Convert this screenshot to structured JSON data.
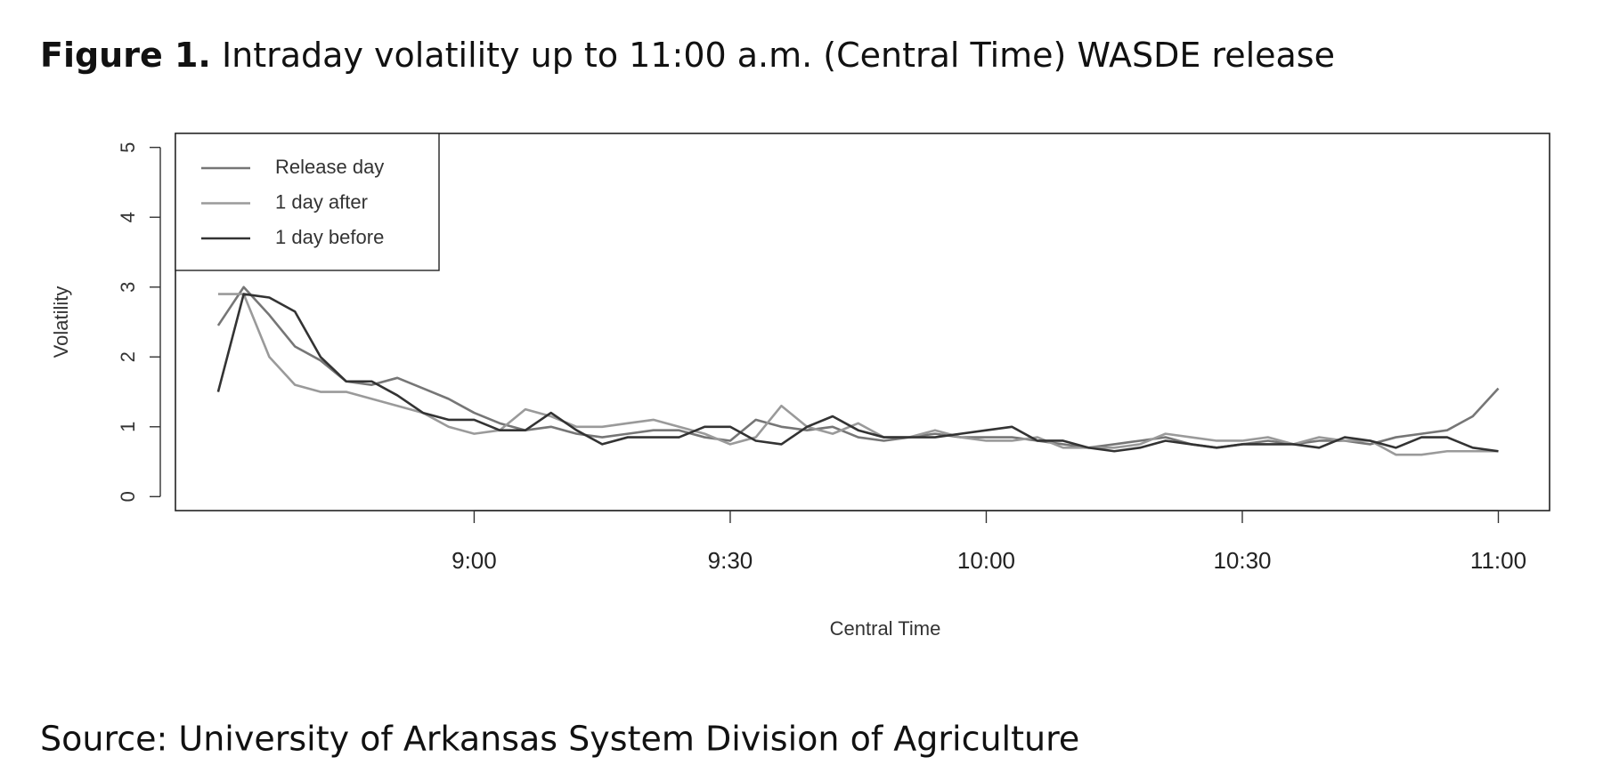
{
  "chart_data": {
    "type": "line",
    "title_label": "Figure 1.",
    "title": "Intraday volatility up to 11:00 a.m. (Central Time) WASDE release",
    "source": "Source: University of Arkansas System Division of Agriculture",
    "x_label": "Central Time",
    "y_label": "Volatility",
    "x": [
      510,
      513,
      516,
      519,
      522,
      525,
      528,
      531,
      534,
      537,
      540,
      543,
      546,
      549,
      552,
      555,
      558,
      561,
      564,
      567,
      570,
      573,
      576,
      579,
      582,
      585,
      588,
      591,
      594,
      597,
      600,
      603,
      606,
      609,
      612,
      615,
      618,
      621,
      624,
      627,
      630,
      633,
      636,
      639,
      642,
      645,
      648,
      651,
      654,
      657,
      660
    ],
    "series": [
      {
        "name": "Release day",
        "color": "#767676",
        "values": [
          2.45,
          3.0,
          2.6,
          2.15,
          1.95,
          1.65,
          1.6,
          1.7,
          1.55,
          1.4,
          1.2,
          1.05,
          0.95,
          1.0,
          0.9,
          0.85,
          0.9,
          0.95,
          0.95,
          0.85,
          0.8,
          1.1,
          1.0,
          0.95,
          1.0,
          0.85,
          0.8,
          0.85,
          0.9,
          0.85,
          0.85,
          0.85,
          0.8,
          0.75,
          0.7,
          0.75,
          0.8,
          0.85,
          0.75,
          0.7,
          0.75,
          0.8,
          0.75,
          0.8,
          0.8,
          0.75,
          0.85,
          0.9,
          0.95,
          1.15,
          1.55
        ]
      },
      {
        "name": "1 day after",
        "color": "#9a9a9a",
        "values": [
          2.9,
          2.9,
          2.0,
          1.6,
          1.5,
          1.5,
          1.4,
          1.3,
          1.2,
          1.0,
          0.9,
          0.95,
          1.25,
          1.15,
          1.0,
          1.0,
          1.05,
          1.1,
          1.0,
          0.9,
          0.75,
          0.85,
          1.3,
          1.0,
          0.9,
          1.05,
          0.85,
          0.85,
          0.95,
          0.85,
          0.8,
          0.8,
          0.85,
          0.7,
          0.7,
          0.7,
          0.75,
          0.9,
          0.85,
          0.8,
          0.8,
          0.85,
          0.75,
          0.85,
          0.8,
          0.8,
          0.6,
          0.6,
          0.65,
          0.65,
          0.65
        ]
      },
      {
        "name": "1 day before",
        "color": "#333333",
        "values": [
          1.5,
          2.9,
          2.85,
          2.65,
          2.0,
          1.65,
          1.65,
          1.45,
          1.2,
          1.1,
          1.1,
          0.95,
          0.95,
          1.2,
          0.95,
          0.75,
          0.85,
          0.85,
          0.85,
          1.0,
          1.0,
          0.8,
          0.75,
          1.0,
          1.15,
          0.95,
          0.85,
          0.85,
          0.85,
          0.9,
          0.95,
          1.0,
          0.8,
          0.8,
          0.7,
          0.65,
          0.7,
          0.8,
          0.75,
          0.7,
          0.75,
          0.75,
          0.75,
          0.7,
          0.85,
          0.8,
          0.7,
          0.85,
          0.85,
          0.7,
          0.65
        ]
      }
    ],
    "xlim": [
      505,
      666
    ],
    "xticks": [
      {
        "value": 540,
        "label": "9:00"
      },
      {
        "value": 570,
        "label": "9:30"
      },
      {
        "value": 600,
        "label": "10:00"
      },
      {
        "value": 630,
        "label": "10:30"
      },
      {
        "value": 660,
        "label": "11:00"
      }
    ],
    "ylim": [
      -0.2,
      5.2
    ],
    "yticks": [
      0,
      1,
      2,
      3,
      4,
      5
    ],
    "legend": "top-left",
    "grid": false
  }
}
